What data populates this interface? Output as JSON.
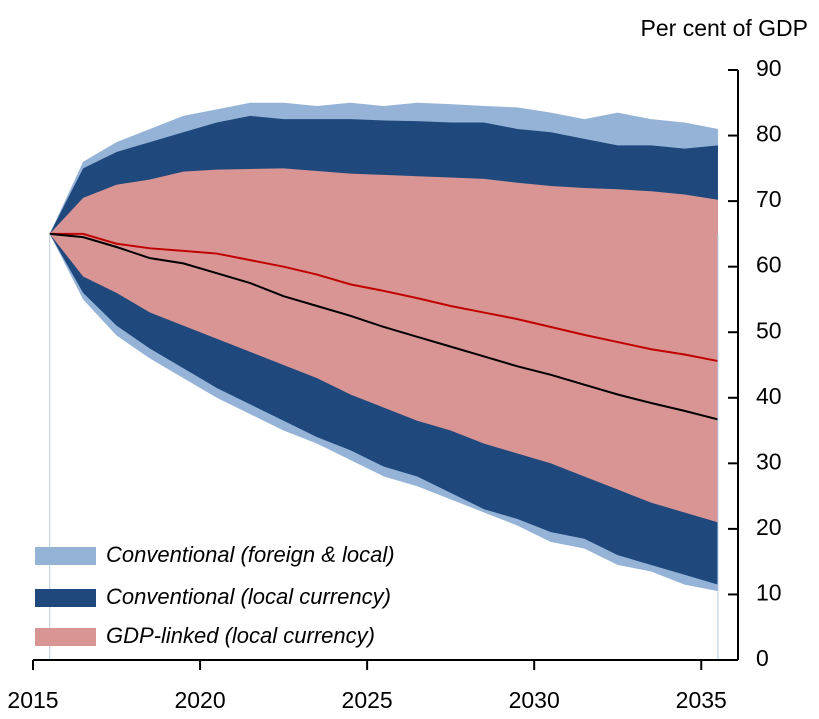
{
  "chart_data": {
    "type": "fan",
    "y_axis_label": "Per cent of GDP",
    "x": [
      2015.5,
      2016.5,
      2017.5,
      2018.5,
      2019.5,
      2020.5,
      2021.5,
      2022.5,
      2023.5,
      2024.5,
      2025.5,
      2026.5,
      2027.5,
      2028.5,
      2029.5,
      2030.5,
      2031.5,
      2032.5,
      2033.5,
      2034.5,
      2035.5
    ],
    "xlim": [
      2015,
      2036.1
    ],
    "xticks": [
      2015,
      2020,
      2025,
      2030,
      2035
    ],
    "ylim": [
      0,
      90
    ],
    "yticks": [
      0,
      10,
      20,
      30,
      40,
      50,
      60,
      70,
      80,
      90
    ],
    "legend": "bottom-left",
    "series": [
      {
        "name": "Conventional (foreign & local)",
        "color": "#95b3d7",
        "upper": [
          65,
          76,
          79,
          81,
          83,
          84,
          85,
          85,
          84.5,
          85,
          84.5,
          85,
          84.8,
          84.5,
          84.3,
          83.5,
          82.5,
          83.5,
          82.5,
          82,
          81
        ],
        "lower": [
          65,
          55,
          49.5,
          46,
          43,
          40,
          37.5,
          35,
          33,
          30.5,
          28,
          26.5,
          24.5,
          22.5,
          20.5,
          18,
          17,
          14.5,
          13.5,
          11.5,
          10.5
        ]
      },
      {
        "name": "Conventional (local currency)",
        "color": "#1f497d",
        "upper": [
          65,
          75,
          77.5,
          79,
          80.5,
          82,
          83,
          82.5,
          82.5,
          82.5,
          82.3,
          82.2,
          82,
          82,
          81,
          80.5,
          79.5,
          78.5,
          78.5,
          78,
          78.5
        ],
        "lower": [
          65,
          56,
          51,
          47.5,
          44.5,
          41.5,
          39,
          36.5,
          34,
          32,
          29.5,
          28,
          25.5,
          23,
          21.5,
          19.5,
          18.5,
          16,
          14.5,
          13,
          11.5
        ]
      },
      {
        "name": "GDP-linked (local currency)",
        "color": "#d99594",
        "upper": [
          65,
          70.5,
          72.5,
          73.3,
          74.5,
          74.8,
          74.9,
          75,
          74.6,
          74.2,
          74,
          73.8,
          73.6,
          73.4,
          72.8,
          72.3,
          72,
          71.8,
          71.5,
          71,
          70.2
        ],
        "lower": [
          65,
          58.5,
          56,
          53,
          51,
          49,
          47,
          45,
          43,
          40.5,
          38.5,
          36.5,
          35,
          33,
          31.5,
          30,
          28,
          26,
          24,
          22.5,
          21
        ]
      }
    ],
    "lines": [
      {
        "color": "#c00000",
        "values": [
          65,
          65,
          63.5,
          62.8,
          62.4,
          62,
          61,
          60,
          58.8,
          57.3,
          56.3,
          55.2,
          54,
          53,
          52,
          50.8,
          49.6,
          48.5,
          47.4,
          46.6,
          45.6
        ]
      },
      {
        "color": "#000000",
        "values": [
          65,
          64.5,
          63,
          61.3,
          60.5,
          59,
          57.5,
          55.5,
          54,
          52.5,
          50.8,
          49.3,
          47.8,
          46.3,
          44.8,
          43.5,
          42,
          40.5,
          39.2,
          38,
          36.7
        ]
      }
    ]
  }
}
